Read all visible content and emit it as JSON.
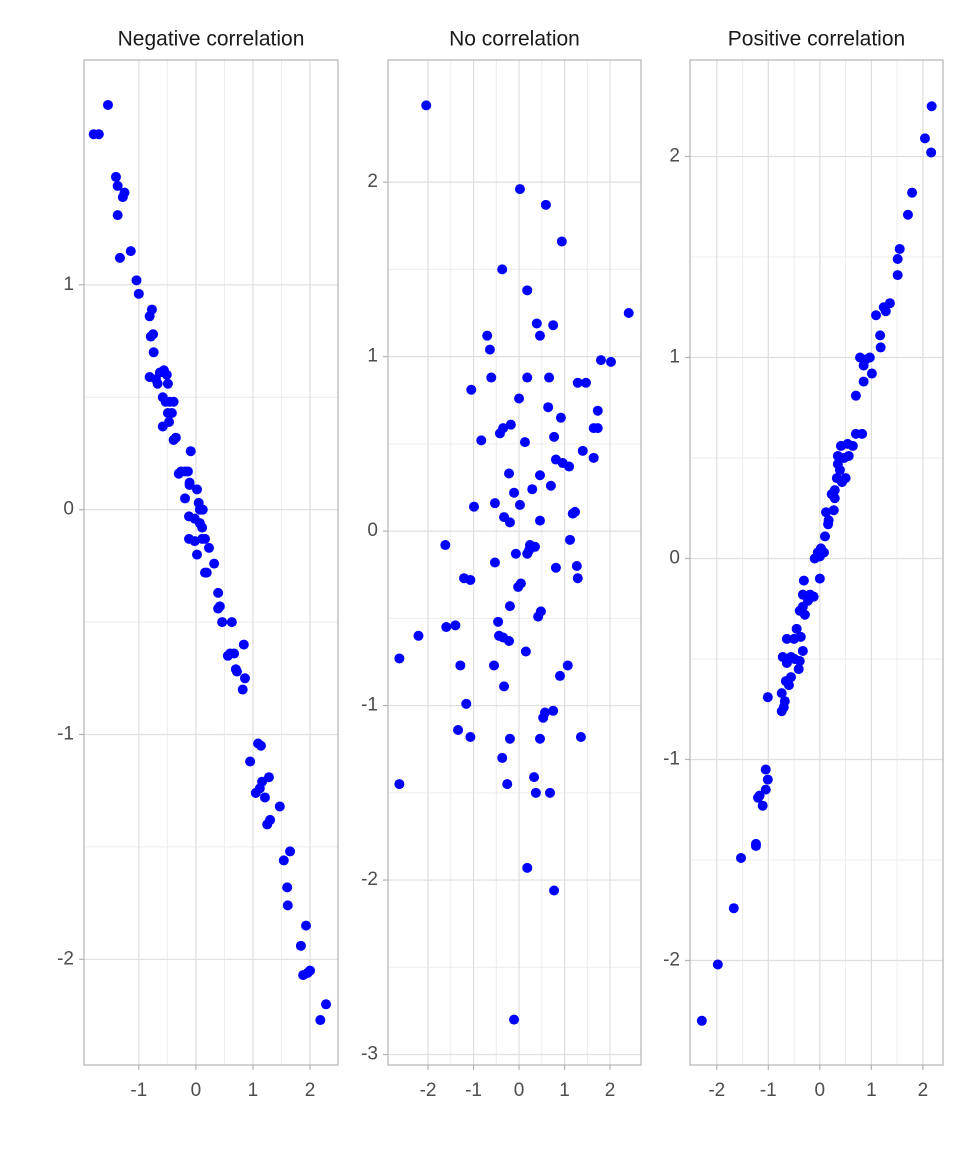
{
  "chart_data": [
    {
      "type": "scatter",
      "title": "Negative correlation",
      "color": "#0000ff",
      "grid": true,
      "minor_grid": true,
      "xlim": [
        -1.96,
        2.49
      ],
      "ylim": [
        -2.47,
        2.0
      ],
      "xticks": [
        -1,
        0,
        1,
        2
      ],
      "yticks": [
        -2,
        -1,
        0,
        1
      ],
      "x": [
        -1.79,
        -1.7,
        -1.54,
        -1.4,
        -1.37,
        -1.28,
        -1.25,
        -1.37,
        -1.33,
        -1.14,
        -1.04,
        -1.0,
        -0.77,
        -0.81,
        -0.75,
        -0.79,
        -0.74,
        -0.81,
        -0.7,
        -0.63,
        -0.56,
        -0.67,
        -0.51,
        -0.49,
        -0.58,
        -0.53,
        -0.46,
        -0.39,
        -0.49,
        -0.42,
        -0.58,
        -0.47,
        -0.35,
        -0.39,
        -0.09,
        -0.26,
        -0.19,
        -0.14,
        -0.3,
        -0.11,
        -0.11,
        0.02,
        -0.19,
        0.05,
        -0.12,
        -0.02,
        0.07,
        0.12,
        0.07,
        0.11,
        -0.12,
        -0.02,
        0.11,
        0.16,
        0.23,
        0.02,
        0.16,
        0.32,
        0.19,
        0.39,
        0.42,
        0.39,
        0.46,
        0.63,
        0.56,
        0.67,
        0.7,
        0.6,
        0.72,
        0.84,
        0.86,
        0.82,
        0.95,
        1.09,
        1.14,
        1.05,
        1.12,
        1.16,
        1.21,
        1.28,
        1.25,
        1.3,
        1.47,
        1.54,
        1.65,
        1.6,
        1.61,
        1.84,
        1.93,
        1.88,
        1.96,
        2.0,
        2.18,
        2.28
      ],
      "values": [
        1.67,
        1.67,
        1.8,
        1.48,
        1.44,
        1.39,
        1.41,
        1.31,
        1.12,
        1.15,
        1.02,
        0.96,
        0.89,
        0.86,
        0.78,
        0.77,
        0.7,
        0.59,
        0.58,
        0.61,
        0.62,
        0.56,
        0.6,
        0.56,
        0.5,
        0.48,
        0.48,
        0.48,
        0.43,
        0.43,
        0.37,
        0.39,
        0.32,
        0.31,
        0.26,
        0.17,
        0.17,
        0.17,
        0.16,
        0.12,
        0.11,
        0.09,
        0.05,
        0.03,
        -0.03,
        -0.04,
        0.0,
        0.0,
        -0.06,
        -0.08,
        -0.13,
        -0.14,
        -0.13,
        -0.13,
        -0.17,
        -0.2,
        -0.28,
        -0.24,
        -0.28,
        -0.37,
        -0.43,
        -0.44,
        -0.5,
        -0.5,
        -0.65,
        -0.64,
        -0.71,
        -0.64,
        -0.72,
        -0.6,
        -0.75,
        -0.8,
        -1.12,
        -1.04,
        -1.05,
        -1.26,
        -1.24,
        -1.21,
        -1.28,
        -1.19,
        -1.4,
        -1.38,
        -1.32,
        -1.56,
        -1.52,
        -1.68,
        -1.76,
        -1.94,
        -1.85,
        -2.07,
        -2.06,
        -2.05,
        -2.27,
        -2.2
      ]
    },
    {
      "type": "scatter",
      "title": "No correlation",
      "color": "#0000ff",
      "grid": true,
      "minor_grid": true,
      "xlim": [
        -2.88,
        2.68
      ],
      "ylim": [
        -3.06,
        2.7
      ],
      "xticks": [
        -2,
        -1,
        0,
        1,
        2
      ],
      "yticks": [
        -3,
        -2,
        -1,
        0,
        1,
        2
      ],
      "x": [
        -2.04,
        0.02,
        0.59,
        0.94,
        -0.37,
        0.18,
        2.41,
        0.39,
        0.75,
        -0.7,
        0.46,
        -0.64,
        1.8,
        2.02,
        -0.61,
        0.18,
        0.66,
        1.29,
        1.47,
        -1.05,
        0.0,
        1.73,
        0.64,
        0.92,
        -0.18,
        -0.35,
        -0.42,
        -0.83,
        0.13,
        1.64,
        1.73,
        0.77,
        0.81,
        1.64,
        0.96,
        1.1,
        1.4,
        -0.22,
        0.46,
        0.7,
        0.29,
        -0.11,
        -0.53,
        -0.99,
        0.02,
        -0.33,
        -0.2,
        0.46,
        1.18,
        1.23,
        -1.62,
        0.24,
        0.35,
        0.22,
        0.18,
        -0.07,
        -0.53,
        1.12,
        1.27,
        0.81,
        1.29,
        0.04,
        -1.21,
        -1.07,
        -0.02,
        -0.2,
        0.48,
        0.42,
        -0.46,
        -1.6,
        -1.4,
        -2.21,
        -0.44,
        -0.35,
        -0.22,
        0.15,
        -2.63,
        -1.29,
        -0.55,
        1.07,
        0.9,
        -0.33,
        -1.16,
        0.57,
        0.75,
        0.53,
        -1.34,
        -1.07,
        1.36,
        -0.2,
        0.46,
        -0.37,
        -2.63,
        0.33,
        -0.26,
        0.37,
        0.68,
        0.18,
        0.77,
        -0.11
      ],
      "values": [
        2.44,
        1.96,
        1.87,
        1.66,
        1.5,
        1.38,
        1.25,
        1.19,
        1.18,
        1.12,
        1.12,
        1.04,
        0.98,
        0.97,
        0.88,
        0.88,
        0.88,
        0.85,
        0.85,
        0.81,
        0.76,
        0.69,
        0.71,
        0.65,
        0.61,
        0.59,
        0.56,
        0.52,
        0.51,
        0.59,
        0.59,
        0.54,
        0.41,
        0.42,
        0.39,
        0.37,
        0.46,
        0.33,
        0.32,
        0.26,
        0.24,
        0.22,
        0.16,
        0.14,
        0.15,
        0.08,
        0.05,
        0.06,
        0.1,
        0.11,
        -0.08,
        -0.08,
        -0.09,
        -0.11,
        -0.13,
        -0.13,
        -0.18,
        -0.05,
        -0.2,
        -0.21,
        -0.27,
        -0.3,
        -0.27,
        -0.28,
        -0.32,
        -0.43,
        -0.46,
        -0.49,
        -0.52,
        -0.55,
        -0.54,
        -0.6,
        -0.6,
        -0.61,
        -0.63,
        -0.69,
        -0.73,
        -0.77,
        -0.77,
        -0.77,
        -0.83,
        -0.89,
        -0.99,
        -1.04,
        -1.03,
        -1.07,
        -1.14,
        -1.18,
        -1.18,
        -1.19,
        -1.19,
        -1.3,
        -1.45,
        -1.41,
        -1.45,
        -1.5,
        -1.5,
        -1.93,
        -2.06,
        -2.8
      ]
    },
    {
      "type": "scatter",
      "title": "Positive correlation",
      "color": "#0000ff",
      "grid": true,
      "minor_grid": true,
      "xlim": [
        -2.52,
        2.39
      ],
      "ylim": [
        -2.52,
        2.48
      ],
      "xticks": [
        -2,
        -1,
        0,
        1,
        2
      ],
      "yticks": [
        -2,
        -1,
        0,
        1,
        2
      ],
      "x": [
        2.17,
        2.04,
        2.16,
        1.79,
        1.71,
        1.55,
        1.51,
        1.51,
        1.36,
        1.24,
        1.28,
        1.09,
        1.17,
        1.18,
        0.97,
        0.89,
        0.78,
        0.85,
        1.01,
        0.85,
        0.7,
        0.82,
        0.7,
        0.54,
        0.64,
        0.41,
        0.35,
        0.47,
        0.56,
        0.35,
        0.39,
        0.33,
        0.5,
        0.43,
        0.29,
        0.23,
        0.29,
        0.12,
        0.27,
        0.17,
        0.16,
        0.1,
        0.02,
        -0.04,
        0.08,
        0.0,
        -0.1,
        0.0,
        -0.31,
        -0.19,
        -0.12,
        -0.33,
        -0.23,
        -0.33,
        -0.39,
        -0.29,
        -0.45,
        -0.37,
        -0.5,
        -0.64,
        -0.33,
        -0.72,
        -0.56,
        -0.49,
        -0.39,
        -0.64,
        -0.41,
        -0.56,
        -0.66,
        -0.6,
        -0.74,
        -1.01,
        -0.68,
        -0.7,
        -0.74,
        -1.05,
        -1.01,
        -1.05,
        -1.17,
        -1.2,
        -1.11,
        -1.24,
        -1.24,
        -1.53,
        -1.67,
        -1.98,
        -2.29
      ],
      "values": [
        2.25,
        2.09,
        2.02,
        1.82,
        1.71,
        1.54,
        1.49,
        1.41,
        1.27,
        1.25,
        1.23,
        1.21,
        1.11,
        1.05,
        1.0,
        0.99,
        1.0,
        0.96,
        0.92,
        0.88,
        0.81,
        0.62,
        0.62,
        0.57,
        0.56,
        0.56,
        0.51,
        0.5,
        0.51,
        0.47,
        0.44,
        0.4,
        0.4,
        0.38,
        0.34,
        0.32,
        0.3,
        0.23,
        0.24,
        0.19,
        0.17,
        0.11,
        0.05,
        0.03,
        0.03,
        0.01,
        0.0,
        -0.1,
        -0.11,
        -0.18,
        -0.19,
        -0.18,
        -0.21,
        -0.24,
        -0.26,
        -0.28,
        -0.35,
        -0.39,
        -0.4,
        -0.4,
        -0.46,
        -0.49,
        -0.49,
        -0.5,
        -0.51,
        -0.52,
        -0.55,
        -0.59,
        -0.61,
        -0.63,
        -0.67,
        -0.69,
        -0.71,
        -0.74,
        -0.76,
        -1.05,
        -1.1,
        -1.15,
        -1.18,
        -1.19,
        -1.23,
        -1.42,
        -1.43,
        -1.49,
        -1.74,
        -2.02,
        -2.3
      ]
    }
  ]
}
